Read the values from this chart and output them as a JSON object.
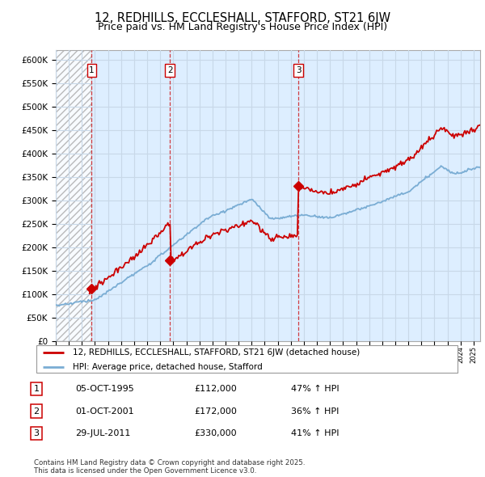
{
  "title": "12, REDHILLS, ECCLESHALL, STAFFORD, ST21 6JW",
  "subtitle": "Price paid vs. HM Land Registry's House Price Index (HPI)",
  "ylim": [
    0,
    620000
  ],
  "yticks": [
    0,
    50000,
    100000,
    150000,
    200000,
    250000,
    300000,
    350000,
    400000,
    450000,
    500000,
    550000,
    600000
  ],
  "ytick_labels": [
    "£0",
    "£50K",
    "£100K",
    "£150K",
    "£200K",
    "£250K",
    "£300K",
    "£350K",
    "£400K",
    "£450K",
    "£500K",
    "£550K",
    "£600K"
  ],
  "red_line_color": "#cc0000",
  "blue_line_color": "#7aadd4",
  "transaction_years": [
    1995.75,
    2001.75,
    2011.58
  ],
  "transaction_prices": [
    112000,
    172000,
    330000
  ],
  "transaction_labels": [
    "1",
    "2",
    "3"
  ],
  "legend_red_label": "12, REDHILLS, ECCLESHALL, STAFFORD, ST21 6JW (detached house)",
  "legend_blue_label": "HPI: Average price, detached house, Stafford",
  "footnote": "Contains HM Land Registry data © Crown copyright and database right 2025.\nThis data is licensed under the Open Government Licence v3.0.",
  "grid_color": "#c8d8e8",
  "bg_color": "#ddeeff",
  "hatch_color": "#bbbbbb",
  "title_fontsize": 10.5,
  "subtitle_fontsize": 9,
  "tick_fontsize": 7.5,
  "xmin": 1993.0,
  "xmax": 2025.5,
  "hatch_end": 1995.75
}
